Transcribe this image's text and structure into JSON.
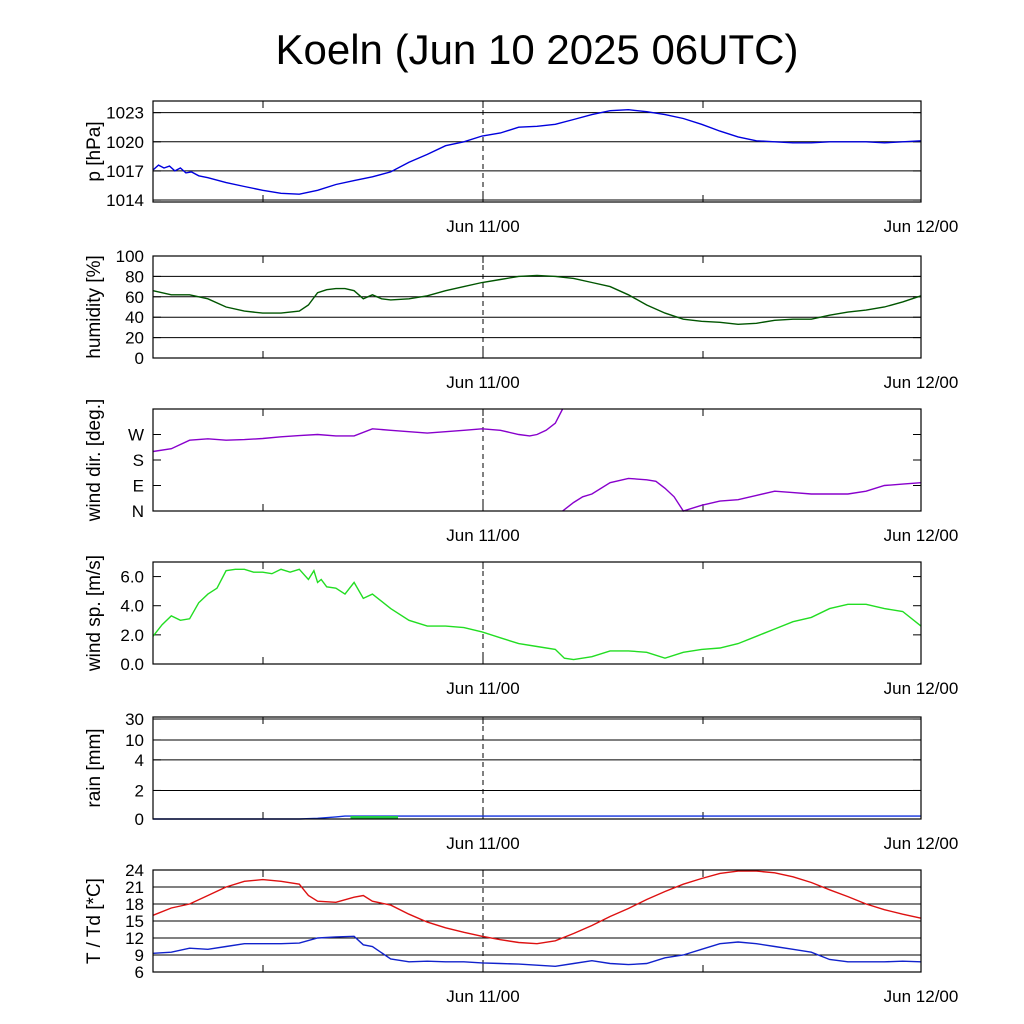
{
  "title": "Koeln (Jun 10 2025 06UTC)",
  "x_labels": [
    "Jun 11/00",
    "Jun 12/00"
  ],
  "chart_data": [
    {
      "type": "line",
      "id": "pressure",
      "ylabel": "p [hPa]",
      "ylim": [
        1013.8,
        1024.2
      ],
      "grid": true,
      "x_unit": "hours since Jun 10 06UTC",
      "xlim": [
        0,
        42
      ],
      "yticks": [
        1014,
        1017,
        1020,
        1023
      ],
      "ytick_labels": [
        "1014",
        "1017",
        "1020",
        "1023"
      ],
      "gridlines": [
        1014,
        1017,
        1020,
        1023
      ],
      "color": "#0000dd",
      "series": [
        {
          "x": [
            0,
            0.3,
            0.6,
            0.9,
            1.2,
            1.5,
            1.8,
            2.1,
            2.5,
            3,
            4,
            5,
            6,
            7,
            8,
            9,
            10,
            11,
            12,
            13,
            14,
            15,
            16,
            17,
            18,
            19,
            20,
            21,
            22,
            23,
            24,
            25,
            26,
            27,
            28,
            29,
            30,
            31,
            32,
            33,
            34,
            35,
            36,
            37,
            38,
            39,
            40,
            41,
            42
          ],
          "y": [
            1017.1,
            1017.6,
            1017.3,
            1017.5,
            1017.0,
            1017.3,
            1016.8,
            1016.9,
            1016.5,
            1016.3,
            1015.8,
            1015.4,
            1015.0,
            1014.7,
            1014.6,
            1015.0,
            1015.6,
            1016.0,
            1016.4,
            1016.9,
            1017.9,
            1018.7,
            1019.6,
            1020.0,
            1020.6,
            1020.9,
            1021.5,
            1021.6,
            1021.8,
            1022.3,
            1022.8,
            1023.2,
            1023.3,
            1023.1,
            1022.8,
            1022.4,
            1021.8,
            1021.1,
            1020.5,
            1020.1,
            1020.0,
            1019.9,
            1019.9,
            1020.0,
            1020.0,
            1020.0,
            1019.9,
            1020.0,
            1020.1
          ]
        }
      ]
    },
    {
      "type": "line",
      "id": "humidity",
      "ylabel": "humidity [%]",
      "ylim": [
        0,
        100
      ],
      "grid": true,
      "x_unit": "hours since Jun 10 06UTC",
      "xlim": [
        0,
        42
      ],
      "yticks": [
        0,
        20,
        40,
        60,
        80,
        100
      ],
      "ytick_labels": [
        "0",
        "20",
        "40",
        "60",
        "80",
        "100"
      ],
      "gridlines": [
        20,
        40,
        60,
        80
      ],
      "color": "#005500",
      "series": [
        {
          "x": [
            0,
            1,
            2,
            3,
            4,
            5,
            6,
            7,
            8,
            8.5,
            9,
            9.5,
            10,
            10.5,
            11,
            11.5,
            12,
            12.5,
            13,
            14,
            15,
            16,
            17,
            18,
            19,
            20,
            21,
            22,
            23,
            24,
            25,
            26,
            27,
            28,
            29,
            30,
            31,
            32,
            33,
            34,
            35,
            36,
            37,
            38,
            39,
            40,
            41,
            42
          ],
          "y": [
            66,
            62,
            62,
            58,
            50,
            46,
            44,
            44,
            46,
            52,
            64,
            67,
            68,
            68,
            66,
            58,
            62,
            58,
            57,
            58,
            61,
            66,
            70,
            74,
            77,
            80,
            81,
            80,
            78,
            74,
            70,
            62,
            52,
            44,
            38,
            36,
            35,
            33,
            34,
            37,
            38,
            38,
            42,
            45,
            47,
            50,
            55,
            61
          ]
        }
      ]
    },
    {
      "type": "line",
      "id": "wind_direction",
      "ylabel": "wind dir. [deg.]",
      "ylim": [
        0,
        360
      ],
      "grid": false,
      "x_unit": "hours since Jun 10 06UTC",
      "xlim": [
        0,
        42
      ],
      "yticks": [
        0,
        90,
        180,
        270
      ],
      "ytick_labels": [
        "N",
        "E",
        "S",
        "W"
      ],
      "gridlines": [],
      "color": "#8800cc",
      "series": [
        {
          "x": [
            0,
            1,
            2,
            3,
            4,
            5,
            6,
            7,
            8,
            9,
            10,
            11,
            12,
            13,
            14,
            15,
            16,
            17,
            18,
            19,
            20,
            20.6,
            21,
            21.5,
            22,
            22.4
          ],
          "y": [
            210,
            220,
            250,
            255,
            250,
            252,
            256,
            262,
            266,
            270,
            265,
            265,
            290,
            285,
            280,
            275,
            280,
            285,
            290,
            285,
            270,
            265,
            270,
            285,
            310,
            360
          ]
        },
        {
          "x": [
            22.4,
            23,
            23.5,
            24,
            25,
            26,
            27,
            27.5,
            28,
            28.5,
            29,
            30,
            31,
            32,
            33,
            34,
            35,
            36,
            37,
            38,
            39,
            40,
            41,
            42
          ],
          "y": [
            0,
            30,
            50,
            60,
            100,
            115,
            110,
            105,
            80,
            50,
            0,
            20,
            35,
            40,
            55,
            70,
            65,
            60,
            60,
            60,
            70,
            90,
            95,
            100
          ]
        }
      ]
    },
    {
      "type": "line",
      "id": "wind_speed",
      "ylabel": "wind sp. [m/s]",
      "ylim": [
        0,
        7
      ],
      "grid": false,
      "x_unit": "hours since Jun 10 06UTC",
      "xlim": [
        0,
        42
      ],
      "yticks": [
        0,
        2,
        4,
        6
      ],
      "ytick_labels": [
        "0.0",
        "2.0",
        "4.0",
        "6.0"
      ],
      "gridlines": [],
      "color": "#22dd22",
      "series": [
        {
          "x": [
            0,
            0.5,
            1,
            1.5,
            2,
            2.5,
            3,
            3.5,
            4,
            4.5,
            5,
            5.5,
            6,
            6.5,
            7,
            7.5,
            8,
            8.5,
            8.8,
            9,
            9.2,
            9.5,
            10,
            10.5,
            11,
            11.5,
            12,
            12.5,
            13,
            14,
            15,
            16,
            17,
            18,
            19,
            20,
            21,
            22,
            22.5,
            23,
            24,
            25,
            26,
            27,
            28,
            29,
            30,
            31,
            32,
            33,
            34,
            35,
            36,
            37,
            38,
            39,
            40,
            41,
            42
          ],
          "y": [
            1.9,
            2.7,
            3.3,
            3.0,
            3.1,
            4.2,
            4.8,
            5.2,
            6.4,
            6.5,
            6.5,
            6.3,
            6.3,
            6.2,
            6.5,
            6.3,
            6.5,
            5.8,
            6.4,
            5.6,
            5.8,
            5.3,
            5.2,
            4.8,
            5.6,
            4.5,
            4.8,
            4.3,
            3.8,
            3.0,
            2.6,
            2.6,
            2.5,
            2.2,
            1.8,
            1.4,
            1.2,
            1.0,
            0.4,
            0.3,
            0.5,
            0.9,
            0.9,
            0.8,
            0.4,
            0.8,
            1.0,
            1.1,
            1.4,
            1.9,
            2.4,
            2.9,
            3.2,
            3.8,
            4.1,
            4.1,
            3.8,
            3.6,
            2.6
          ]
        }
      ]
    },
    {
      "type": "area",
      "id": "rain",
      "ylabel": "rain [mm]",
      "scale": "nonlinear",
      "ylim": [
        0,
        30
      ],
      "grid": true,
      "x_unit": "hours since Jun 10 06UTC",
      "xlim": [
        0,
        42
      ],
      "yticks": [
        0,
        2,
        4,
        10,
        30
      ],
      "ytick_labels": [
        "0",
        "2",
        "4",
        "10",
        "30"
      ],
      "gridlines": [
        2,
        4,
        10,
        30
      ],
      "series": [
        {
          "kind": "accumulated",
          "color": "#1030dd",
          "x": [
            0,
            8,
            9,
            10,
            10.5,
            42
          ],
          "y": [
            0,
            0,
            0.05,
            0.15,
            0.2,
            0.2
          ]
        },
        {
          "kind": "hourly",
          "color": "#22cc44",
          "x": [
            10.8,
            13.4
          ],
          "y": [
            0.1,
            0.1
          ]
        }
      ]
    },
    {
      "type": "line",
      "id": "temperature",
      "ylabel": "T / Td [*C]",
      "ylim": [
        6,
        24
      ],
      "grid": true,
      "x_unit": "hours since Jun 10 06UTC",
      "xlim": [
        0,
        42
      ],
      "yticks": [
        6,
        9,
        12,
        15,
        18,
        21,
        24
      ],
      "ytick_labels": [
        "6",
        "9",
        "12",
        "15",
        "18",
        "21",
        "24"
      ],
      "gridlines": [
        9,
        12,
        15,
        18,
        21,
        24
      ],
      "series": [
        {
          "kind": "T",
          "color": "#dd1111",
          "x": [
            0,
            1,
            2,
            3,
            4,
            5,
            6,
            7,
            8,
            8.5,
            9,
            10,
            11,
            11.5,
            12,
            13,
            14,
            15,
            16,
            17,
            18,
            19,
            20,
            21,
            22,
            23,
            24,
            25,
            26,
            27,
            28,
            29,
            30,
            31,
            32,
            33,
            34,
            35,
            36,
            37,
            38,
            39,
            40,
            41,
            42
          ],
          "y": [
            16.0,
            17.3,
            18.0,
            19.5,
            21.0,
            22.0,
            22.3,
            22.0,
            21.5,
            19.5,
            18.5,
            18.3,
            19.2,
            19.5,
            18.5,
            17.8,
            16.2,
            14.8,
            13.8,
            13.0,
            12.3,
            11.7,
            11.2,
            11.0,
            11.5,
            12.8,
            14.2,
            15.8,
            17.2,
            18.8,
            20.2,
            21.5,
            22.5,
            23.4,
            23.8,
            23.8,
            23.5,
            22.8,
            21.8,
            20.5,
            19.3,
            18.0,
            17.0,
            16.2,
            15.5
          ]
        },
        {
          "kind": "Td",
          "color": "#1122cc",
          "x": [
            0,
            1,
            2,
            3,
            4,
            5,
            6,
            7,
            8,
            9,
            10,
            11,
            11.5,
            12,
            13,
            14,
            15,
            16,
            17,
            18,
            19,
            20,
            21,
            22,
            23,
            24,
            25,
            26,
            27,
            28,
            29,
            30,
            31,
            32,
            33,
            34,
            35,
            36,
            37,
            38,
            39,
            40,
            41,
            42
          ],
          "y": [
            9.3,
            9.5,
            10.2,
            10.0,
            10.5,
            11.0,
            11.0,
            11.0,
            11.1,
            12.0,
            12.2,
            12.3,
            10.8,
            10.5,
            8.3,
            7.8,
            7.9,
            7.8,
            7.8,
            7.6,
            7.5,
            7.4,
            7.2,
            7.0,
            7.5,
            8.0,
            7.5,
            7.3,
            7.5,
            8.5,
            9.0,
            10.0,
            11.0,
            11.3,
            11.0,
            10.5,
            10.0,
            9.5,
            8.2,
            7.8,
            7.8,
            7.8,
            7.9,
            7.8
          ]
        }
      ]
    }
  ]
}
